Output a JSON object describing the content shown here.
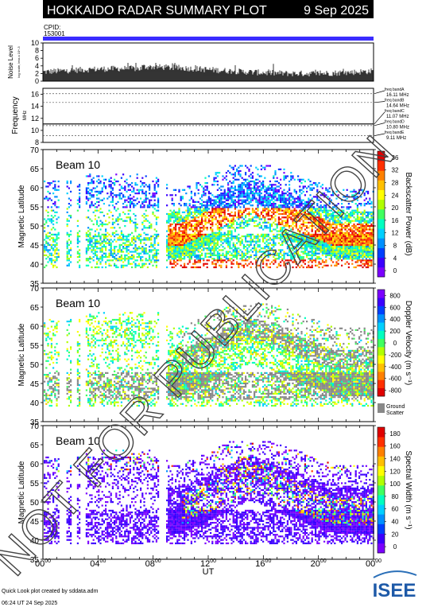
{
  "header": {
    "title": "HOKKAIDO RADAR SUMMARY PLOT",
    "date": "9 Sep 2025"
  },
  "cpid": {
    "label": "CPID:",
    "value": "153001"
  },
  "noise_panel": {
    "ylabel_line1": "Noise Level",
    "ylabel_line2": "log scale, less x 10^-3",
    "ticks": [
      "0",
      "2",
      "4",
      "6",
      "8",
      "10"
    ],
    "ylim": [
      0,
      10
    ]
  },
  "frequency_panel": {
    "ylabel": "Frequency",
    "unit": "MHz",
    "ticks": [
      "8",
      "10",
      "12",
      "14",
      "16"
    ],
    "ylim": [
      8,
      17
    ],
    "bands": [
      {
        "name": "freq bandA",
        "value": "16.11 MHz",
        "mhz": 16.11
      },
      {
        "name": "freq bandB",
        "value": "14.64 MHz",
        "mhz": 14.64
      },
      {
        "name": "freq bandC",
        "value": "11.07 MHz",
        "mhz": 11.07
      },
      {
        "name": "freq bandD",
        "value": "10.80 MHz",
        "mhz": 10.8
      },
      {
        "name": "freq bandE",
        "value": "9.11 MHz",
        "mhz": 9.11
      }
    ]
  },
  "panels": [
    {
      "beam": "Beam 10",
      "ylabel": "Magnetic Latitude",
      "yticks": [
        "35",
        "40",
        "45",
        "50",
        "55",
        "60",
        "65",
        "70"
      ],
      "colorbar_label": "Backscatter Power (dB)",
      "colorbar_ticks": [
        "0",
        "4",
        "8",
        "12",
        "16",
        "20",
        "24",
        "28",
        "32",
        "36"
      ]
    },
    {
      "beam": "Beam 10",
      "ylabel": "Magnetic Latitude",
      "yticks": [
        "35",
        "40",
        "45",
        "50",
        "55",
        "60",
        "65",
        "70"
      ],
      "colorbar_label": "Doppler Velocity (m s⁻¹)",
      "colorbar_ticks": [
        "-800",
        "-600",
        "-400",
        "-200",
        "0",
        "200",
        "400",
        "600",
        "800"
      ],
      "ground_scatter_label": [
        "Ground",
        "Scatter"
      ]
    },
    {
      "beam": "Beam 10",
      "ylabel": "Magnetic Latitude",
      "yticks": [
        "35",
        "40",
        "45",
        "50",
        "55",
        "60",
        "65",
        "70"
      ],
      "colorbar_label": "Spectral Width (m s⁻¹)",
      "colorbar_ticks": [
        "0",
        "20",
        "40",
        "60",
        "80",
        "100",
        "120",
        "140",
        "160",
        "180"
      ]
    }
  ],
  "xaxis": {
    "label": "UT",
    "ticks": [
      "00",
      "04",
      "08",
      "12",
      "16",
      "20",
      "00"
    ],
    "tick_sup": "00",
    "range_hours": [
      0,
      24
    ]
  },
  "watermark": "NOT FOR PUBLICATION",
  "footer": {
    "line1": "Quick Look plot created by sddata.adm",
    "line2": "06:24 UT 24 Sep 2025",
    "logo": "ISEE"
  },
  "colors": {
    "cpid_bar": "#3a2cff",
    "header_bg": "#000000"
  },
  "chart_data": [
    {
      "type": "bar",
      "title": "Noise Level",
      "x": "UT hours 0-24",
      "ylim": [
        0,
        10
      ],
      "description_values": {
        "typical": 2.5,
        "max": 4.5
      }
    },
    {
      "type": "line",
      "title": "Frequency",
      "ylim": [
        8,
        17
      ],
      "series": [
        {
          "name": "frequency",
          "values": [
            11.07,
            11.07,
            11.07,
            11.07
          ]
        }
      ]
    },
    {
      "type": "heatmap",
      "title": "Backscatter Power (dB)",
      "ylim": [
        35,
        70
      ],
      "xlim": [
        0,
        24
      ],
      "clim": [
        0,
        38
      ]
    },
    {
      "type": "heatmap",
      "title": "Doppler Velocity (m s⁻¹)",
      "ylim": [
        35,
        70
      ],
      "xlim": [
        0,
        24
      ],
      "clim": [
        -900,
        900
      ]
    },
    {
      "type": "heatmap",
      "title": "Spectral Width (m s⁻¹)",
      "ylim": [
        35,
        70
      ],
      "xlim": [
        0,
        24
      ],
      "clim": [
        0,
        190
      ]
    }
  ]
}
